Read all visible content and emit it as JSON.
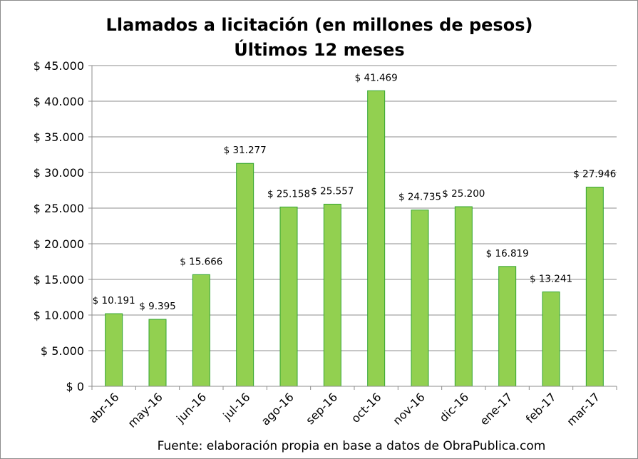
{
  "chart_data": {
    "type": "bar",
    "title": "Llamados a licitación (en millones de pesos)",
    "subtitle": "Últimos 12 meses",
    "categories": [
      "abr-16",
      "may-16",
      "jun-16",
      "jul-16",
      "ago-16",
      "sep-16",
      "oct-16",
      "nov-16",
      "dic-16",
      "ene-17",
      "feb-17",
      "mar-17"
    ],
    "values": [
      10191,
      9395,
      15666,
      31277,
      25158,
      25557,
      41469,
      24735,
      25200,
      16819,
      13241,
      27946
    ],
    "data_labels": [
      "$ 10.191",
      "$ 9.395",
      "$ 15.666",
      "$ 31.277",
      "$ 25.158",
      "$ 25.557",
      "$ 41.469",
      "$ 24.735",
      "$ 25.200",
      "$ 16.819",
      "$ 13.241",
      "$ 27.946"
    ],
    "y_ticks": [
      0,
      5000,
      10000,
      15000,
      20000,
      25000,
      30000,
      35000,
      40000,
      45000
    ],
    "y_tick_labels": [
      "$ 0",
      "$ 5.000",
      "$ 10.000",
      "$ 15.000",
      "$ 20.000",
      "$ 25.000",
      "$ 30.000",
      "$ 35.000",
      "$ 40.000",
      "$ 45.000"
    ],
    "ylim": [
      0,
      45000
    ],
    "xlabel": "",
    "ylabel": "",
    "grid": true,
    "legend": "none",
    "bar_color": "#92d050",
    "bar_edge_color": "#33a532",
    "source_note": "Fuente: elaboración propia en base a datos de ObraPublica.com"
  }
}
